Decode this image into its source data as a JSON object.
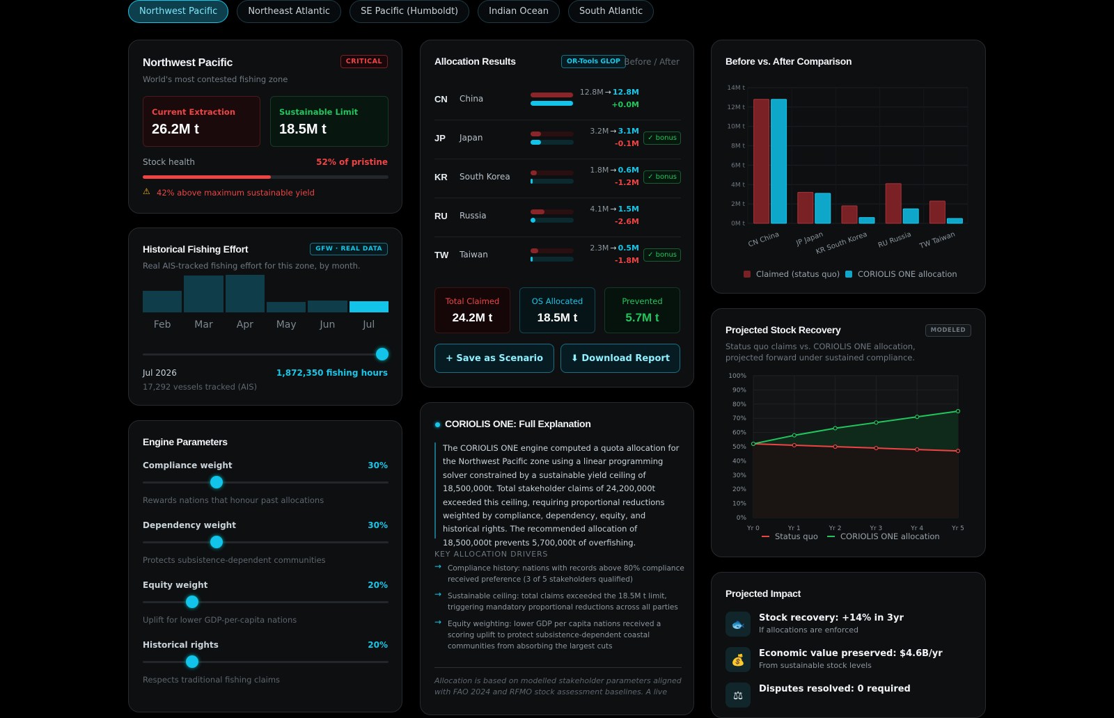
{
  "tabs": [
    "Northwest Pacific",
    "Northeast Atlantic",
    "SE Pacific (Humboldt)",
    "Indian Ocean",
    "South Atlantic"
  ],
  "zone": {
    "title": "Northwest Pacific",
    "subtitle": "World's most contested fishing zone",
    "badge": "CRITICAL",
    "current_label": "Current Extraction",
    "current_value": "26.2M t",
    "limit_label": "Sustainable Limit",
    "limit_value": "18.5M t",
    "health_label": "Stock health",
    "health_value": "52% of pristine",
    "health_fraction": 0.52,
    "warning": "42% above maximum sustainable yield"
  },
  "history": {
    "title": "Historical Fishing Effort",
    "badge": "GFW · REAL DATA",
    "subtitle": "Real AIS-tracked fishing effort for this zone, by month.",
    "months": [
      "Feb",
      "Mar",
      "Apr",
      "May",
      "Jun",
      "Jul"
    ],
    "relative_effort": [
      0.58,
      1.0,
      1.02,
      0.28,
      0.32,
      0.3
    ],
    "slider_fraction": 1.0,
    "date": "Jul 2026",
    "hours": "1,872,350 fishing hours",
    "vessels": "17,292 vessels tracked (AIS)"
  },
  "params": {
    "title": "Engine Parameters",
    "items": [
      {
        "label": "Compliance weight",
        "value": "30%",
        "fraction": 0.3,
        "desc": "Rewards nations that honour past allocations"
      },
      {
        "label": "Dependency weight",
        "value": "30%",
        "fraction": 0.3,
        "desc": "Protects subsistence-dependent communities"
      },
      {
        "label": "Equity weight",
        "value": "20%",
        "fraction": 0.2,
        "desc": "Uplift for lower GDP-per-capita nations"
      },
      {
        "label": "Historical rights",
        "value": "20%",
        "fraction": 0.2,
        "desc": "Respects traditional fishing claims"
      }
    ]
  },
  "alloc": {
    "title": "Allocation Results",
    "engine_badge": "OR-Tools GLOP",
    "toggle": "Before / After",
    "rows": [
      {
        "code": "CN",
        "name": "China",
        "claim": 12.8,
        "alloc": 12.8,
        "before": "12.8M",
        "after": "12.8M",
        "delta": "+0.0M",
        "bonus": ""
      },
      {
        "code": "JP",
        "name": "Japan",
        "claim": 3.2,
        "alloc": 3.1,
        "before": "3.2M",
        "after": "3.1M",
        "delta": "-0.1M",
        "bonus": "✓ bonus"
      },
      {
        "code": "KR",
        "name": "South Korea",
        "claim": 1.8,
        "alloc": 0.6,
        "before": "1.8M",
        "after": "0.6M",
        "delta": "-1.2M",
        "bonus": "✓ bonus"
      },
      {
        "code": "RU",
        "name": "Russia",
        "claim": 4.1,
        "alloc": 1.5,
        "before": "4.1M",
        "after": "1.5M",
        "delta": "-2.6M",
        "bonus": ""
      },
      {
        "code": "TW",
        "name": "Taiwan",
        "claim": 2.3,
        "alloc": 0.5,
        "before": "2.3M",
        "after": "0.5M",
        "delta": "-1.8M",
        "bonus": "✓ bonus"
      }
    ],
    "arrow": "→",
    "total_claimed_label": "Total Claimed",
    "total_claimed": "24.2M t",
    "os_label": "OS Allocated",
    "os_value": "18.5M t",
    "prevented_label": "Prevented",
    "prevented_value": "5.7M t",
    "save_btn": "+ Save as Scenario",
    "download_btn": "⬇ Download Report"
  },
  "explain": {
    "title": "CORIOLIS ONE: Full Explanation",
    "body": "The CORIOLIS ONE engine computed a quota allocation for the Northwest Pacific zone using a linear programming solver constrained by a sustainable yield ceiling of 18,500,000t. Total stakeholder claims of 24,200,000t exceeded this ceiling, requiring proportional reductions weighted by compliance, dependency, equity, and historical rights. The recommended allocation of 18,500,000t prevents 5,700,000t of overfishing.",
    "drivers_label": "KEY ALLOCATION DRIVERS",
    "drivers": [
      "Compliance history: nations with records above 80% compliance received preference (3 of 5 stakeholders qualified)",
      "Sustainable ceiling: total claims exceeded the 18.5M t limit, triggering mandatory proportional reductions across all parties",
      "Equity weighting: lower GDP per capita nations received a scoring uplift to protect subsistence-dependent coastal communities from absorbing the largest cuts"
    ],
    "footnote": "Allocation is based on modelled stakeholder parameters aligned with FAO 2024 and RFMO stock assessment baselines. A live"
  },
  "compare": {
    "title": "Before vs. After Comparison",
    "legend_claimed": "Claimed (status quo)",
    "legend_alloc": "CORIOLIS ONE allocation"
  },
  "recovery": {
    "title": "Projected Stock Recovery",
    "badge": "MODELED",
    "subtitle": "Status quo claims vs. CORIOLIS ONE allocation, projected forward under sustained compliance.",
    "legend_sq": "Status quo",
    "legend_c1": "CORIOLIS ONE allocation"
  },
  "impact": {
    "title": "Projected Impact",
    "items": [
      {
        "icon": "🐟",
        "title": "Stock recovery: +14% in 3yr",
        "desc": "If allocations are enforced"
      },
      {
        "icon": "💰",
        "title": "Economic value preserved: $4.6B/yr",
        "desc": "From sustainable stock levels"
      },
      {
        "icon": "⚖",
        "title": "Disputes resolved: 0 required",
        "desc": ""
      }
    ]
  },
  "chart_data": [
    {
      "type": "bar",
      "categories": [
        "China",
        "Japan",
        "South Korea",
        "Russia",
        "Taiwan"
      ],
      "category_codes": [
        "CN",
        "JP",
        "KR",
        "RU",
        "TW"
      ],
      "series": [
        {
          "name": "Claimed (status quo)",
          "color": "#7a2126",
          "values": [
            12.8,
            3.2,
            1.8,
            4.1,
            2.3
          ]
        },
        {
          "name": "CORIOLIS ONE allocation",
          "color": "#0ea7c9",
          "values": [
            12.8,
            3.1,
            0.6,
            1.5,
            0.5
          ]
        }
      ],
      "yticks": [
        "0M t",
        "2M t",
        "4M t",
        "6M t",
        "8M t",
        "10M t",
        "12M t",
        "14M t"
      ],
      "ylim": [
        0,
        14
      ]
    },
    {
      "type": "line",
      "x": [
        "Yr 0",
        "Yr 1",
        "Yr 2",
        "Yr 3",
        "Yr 4",
        "Yr 5"
      ],
      "series": [
        {
          "name": "Status quo",
          "color": "#ef4444",
          "values": [
            52,
            51,
            50,
            49,
            48,
            47
          ]
        },
        {
          "name": "CORIOLIS ONE allocation",
          "color": "#22c55e",
          "values": [
            52,
            58,
            63,
            67,
            71,
            75
          ]
        }
      ],
      "yticks": [
        "0%",
        "10%",
        "20%",
        "30%",
        "40%",
        "50%",
        "60%",
        "70%",
        "80%",
        "90%",
        "100%"
      ],
      "ylim": [
        0,
        100
      ]
    }
  ]
}
